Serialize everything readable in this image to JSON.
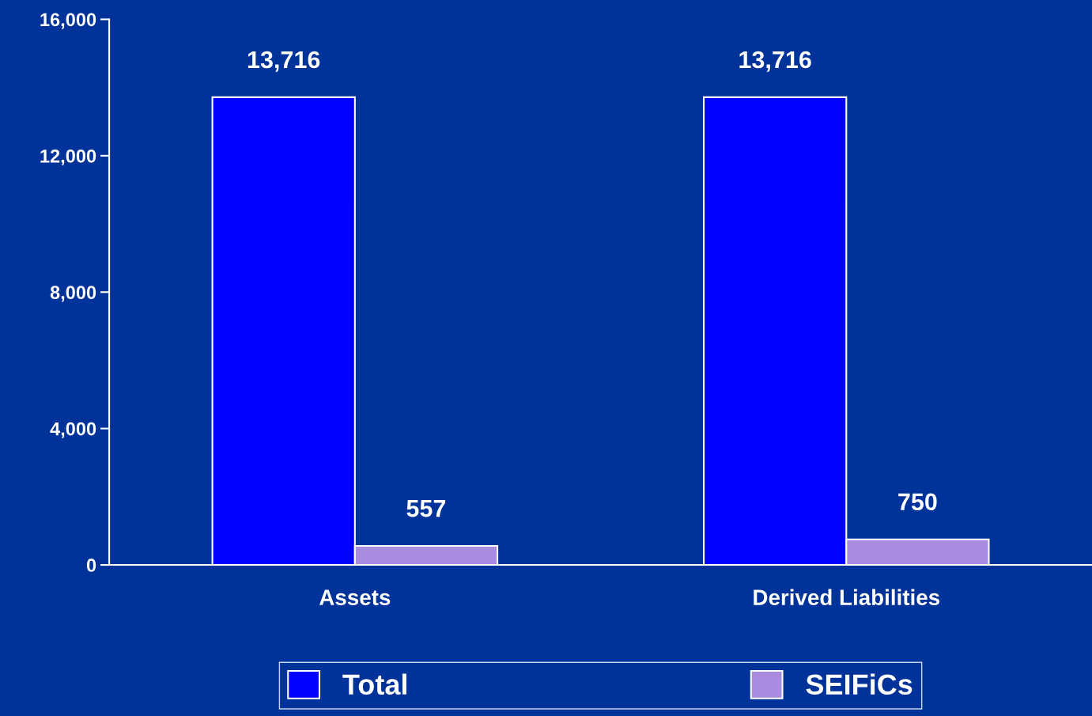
{
  "chart_data": {
    "type": "bar",
    "categories": [
      "Assets",
      "Derived Liabilities"
    ],
    "series": [
      {
        "name": "Total",
        "color": "#0000ff",
        "values": [
          13716,
          13716
        ],
        "value_labels": [
          "13,716",
          "13,716"
        ]
      },
      {
        "name": "SEIFiCs",
        "color": "#a98ce0",
        "values": [
          557,
          750
        ],
        "value_labels": [
          "557",
          "750"
        ]
      }
    ],
    "ylim": [
      0,
      16000
    ],
    "yticks": [
      {
        "value": 0,
        "label": "0"
      },
      {
        "value": 4000,
        "label": "4,000"
      },
      {
        "value": 8000,
        "label": "8,000"
      },
      {
        "value": 12000,
        "label": "12,000"
      },
      {
        "value": 16000,
        "label": "16,000"
      }
    ],
    "legend": "bottom",
    "grid": false
  }
}
